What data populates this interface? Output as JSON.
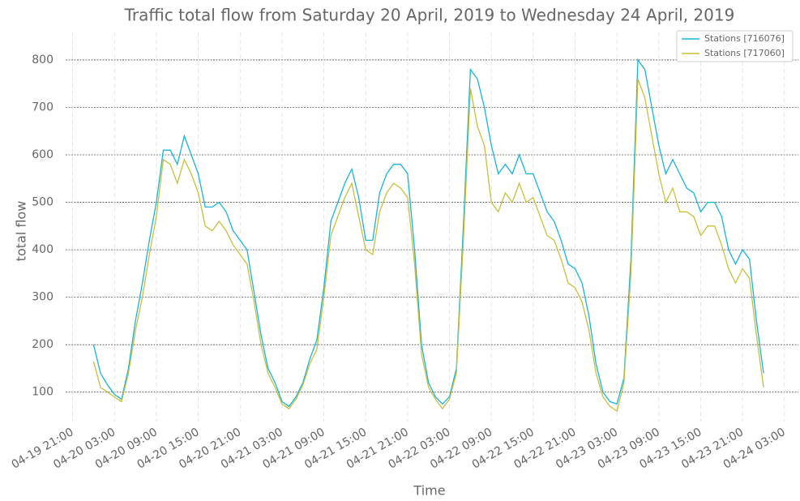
{
  "chart_data": {
    "type": "line",
    "title": "Traffic total flow from Saturday 20 April, 2019 to Wednesday 24 April, 2019",
    "xlabel": "Time",
    "ylabel": "total flow",
    "x": [
      "04-20 00:00",
      "04-20 01:00",
      "04-20 02:00",
      "04-20 03:00",
      "04-20 04:00",
      "04-20 05:00",
      "04-20 06:00",
      "04-20 07:00",
      "04-20 08:00",
      "04-20 09:00",
      "04-20 10:00",
      "04-20 11:00",
      "04-20 12:00",
      "04-20 13:00",
      "04-20 14:00",
      "04-20 15:00",
      "04-20 16:00",
      "04-20 17:00",
      "04-20 18:00",
      "04-20 19:00",
      "04-20 20:00",
      "04-20 21:00",
      "04-20 22:00",
      "04-20 23:00",
      "04-21 00:00",
      "04-21 01:00",
      "04-21 02:00",
      "04-21 03:00",
      "04-21 04:00",
      "04-21 05:00",
      "04-21 06:00",
      "04-21 07:00",
      "04-21 08:00",
      "04-21 09:00",
      "04-21 10:00",
      "04-21 11:00",
      "04-21 12:00",
      "04-21 13:00",
      "04-21 14:00",
      "04-21 15:00",
      "04-21 16:00",
      "04-21 17:00",
      "04-21 18:00",
      "04-21 19:00",
      "04-21 20:00",
      "04-21 21:00",
      "04-21 22:00",
      "04-21 23:00",
      "04-22 00:00",
      "04-22 01:00",
      "04-22 02:00",
      "04-22 03:00",
      "04-22 04:00",
      "04-22 05:00",
      "04-22 06:00",
      "04-22 07:00",
      "04-22 08:00",
      "04-22 09:00",
      "04-22 10:00",
      "04-22 11:00",
      "04-22 12:00",
      "04-22 13:00",
      "04-22 14:00",
      "04-22 15:00",
      "04-22 16:00",
      "04-22 17:00",
      "04-22 18:00",
      "04-22 19:00",
      "04-22 20:00",
      "04-22 21:00",
      "04-22 22:00",
      "04-22 23:00",
      "04-23 00:00",
      "04-23 01:00",
      "04-23 02:00",
      "04-23 03:00",
      "04-23 04:00",
      "04-23 05:00",
      "04-23 06:00",
      "04-23 07:00",
      "04-23 08:00",
      "04-23 09:00",
      "04-23 10:00",
      "04-23 11:00",
      "04-23 12:00",
      "04-23 13:00",
      "04-23 14:00",
      "04-23 15:00",
      "04-23 16:00",
      "04-23 17:00",
      "04-23 18:00",
      "04-23 19:00",
      "04-23 20:00",
      "04-23 21:00",
      "04-23 22:00",
      "04-23 23:00",
      "04-24 00:00"
    ],
    "series": [
      {
        "name": "Stations [716076]",
        "color": "#17b4e0",
        "values": [
          200,
          140,
          115,
          95,
          85,
          150,
          250,
          330,
          420,
          500,
          610,
          610,
          580,
          640,
          600,
          560,
          490,
          490,
          500,
          480,
          440,
          420,
          400,
          310,
          220,
          150,
          120,
          80,
          70,
          90,
          120,
          170,
          210,
          320,
          460,
          500,
          540,
          570,
          510,
          420,
          420,
          520,
          560,
          580,
          580,
          560,
          400,
          200,
          120,
          90,
          75,
          90,
          150,
          450,
          780,
          760,
          700,
          620,
          560,
          580,
          560,
          600,
          560,
          560,
          520,
          480,
          460,
          420,
          370,
          360,
          330,
          260,
          160,
          100,
          80,
          75,
          130,
          380,
          800,
          780,
          700,
          620,
          560,
          590,
          560,
          530,
          520,
          480,
          500,
          500,
          470,
          400,
          370,
          400,
          380,
          250,
          140
        ]
      },
      {
        "name": "Stations [717060]",
        "color": "#c8c03a",
        "values": [
          165,
          110,
          100,
          90,
          80,
          140,
          230,
          300,
          390,
          470,
          590,
          580,
          540,
          590,
          560,
          520,
          450,
          440,
          460,
          440,
          410,
          390,
          370,
          290,
          200,
          140,
          110,
          75,
          65,
          85,
          115,
          160,
          190,
          300,
          430,
          470,
          510,
          540,
          470,
          400,
          390,
          480,
          520,
          540,
          530,
          510,
          370,
          180,
          110,
          85,
          65,
          85,
          140,
          420,
          740,
          660,
          620,
          500,
          480,
          520,
          500,
          540,
          500,
          510,
          470,
          430,
          420,
          380,
          330,
          320,
          290,
          230,
          140,
          90,
          70,
          60,
          120,
          350,
          760,
          720,
          640,
          560,
          500,
          530,
          480,
          480,
          470,
          430,
          450,
          450,
          410,
          360,
          330,
          360,
          340,
          220,
          110
        ]
      }
    ],
    "xlim": [
      "04-19 20:00",
      "04-24 05:00"
    ],
    "xticks": [
      "04-19 21:00",
      "04-20 03:00",
      "04-20 09:00",
      "04-20 15:00",
      "04-20 21:00",
      "04-21 03:00",
      "04-21 09:00",
      "04-21 15:00",
      "04-21 21:00",
      "04-22 03:00",
      "04-22 09:00",
      "04-22 15:00",
      "04-22 21:00",
      "04-23 03:00",
      "04-23 09:00",
      "04-23 15:00",
      "04-23 21:00",
      "04-24 03:00"
    ],
    "ylim": [
      38,
      858
    ],
    "yticks": [
      100,
      200,
      300,
      400,
      500,
      600,
      700,
      800
    ],
    "grid": true,
    "legend": "upper right"
  }
}
